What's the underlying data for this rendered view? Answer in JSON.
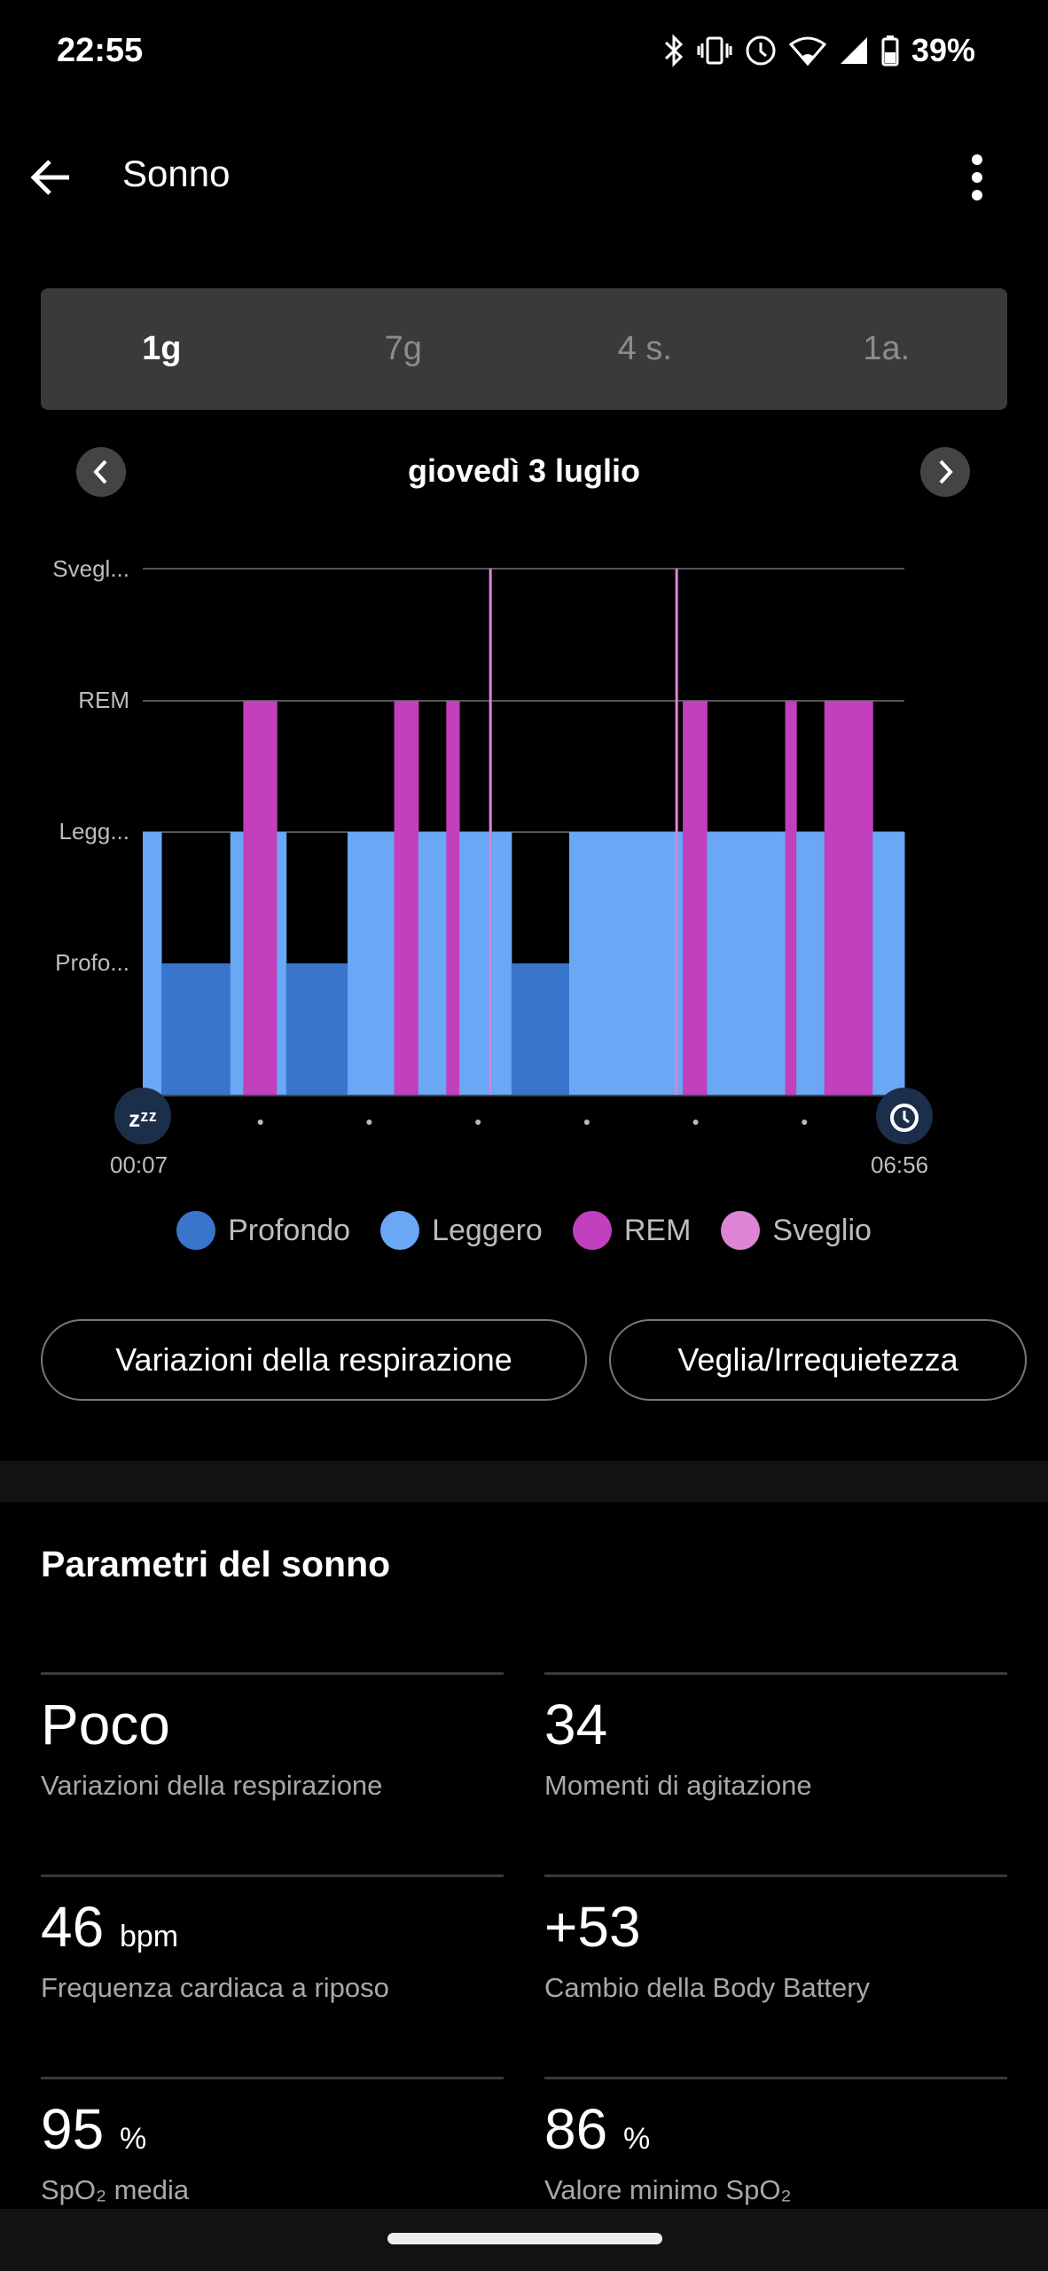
{
  "status": {
    "time": "22:55",
    "battery": "39%",
    "icons": [
      "bluetooth-icon",
      "vibrate-icon",
      "alarm-icon",
      "wifi-icon",
      "signal-icon",
      "battery-icon"
    ]
  },
  "header": {
    "title": "Sonno"
  },
  "tabs": [
    {
      "label": "1g",
      "active": true
    },
    {
      "label": "7g"
    },
    {
      "label": "4 s."
    },
    {
      "label": "1a."
    }
  ],
  "date": "giovedì 3 luglio",
  "chart_data": {
    "type": "hypnogram",
    "levels": [
      "Profo...",
      "Legg...",
      "REM",
      "Svegl..."
    ],
    "start": "00:07",
    "end": "06:56",
    "total_minutes": 409,
    "colors": {
      "deep": "#3a75cc",
      "light": "#6aa7f5",
      "rem": "#c23fbd",
      "awake": "#de84d6"
    },
    "segments": [
      {
        "stage": "light",
        "from": 0,
        "to": 10
      },
      {
        "stage": "deep",
        "from": 10,
        "to": 47
      },
      {
        "stage": "light",
        "from": 47,
        "to": 54
      },
      {
        "stage": "rem",
        "from": 54,
        "to": 72
      },
      {
        "stage": "light",
        "from": 72,
        "to": 77
      },
      {
        "stage": "deep",
        "from": 77,
        "to": 110
      },
      {
        "stage": "light",
        "from": 110,
        "to": 135
      },
      {
        "stage": "rem",
        "from": 135,
        "to": 148
      },
      {
        "stage": "light",
        "from": 148,
        "to": 163
      },
      {
        "stage": "rem",
        "from": 163,
        "to": 170
      },
      {
        "stage": "light",
        "from": 170,
        "to": 186
      },
      {
        "stage": "awake",
        "from": 186,
        "to": 187
      },
      {
        "stage": "light",
        "from": 187,
        "to": 198
      },
      {
        "stage": "deep",
        "from": 198,
        "to": 229
      },
      {
        "stage": "light",
        "from": 229,
        "to": 286
      },
      {
        "stage": "awake",
        "from": 286,
        "to": 287
      },
      {
        "stage": "light",
        "from": 287,
        "to": 290
      },
      {
        "stage": "rem",
        "from": 290,
        "to": 303
      },
      {
        "stage": "light",
        "from": 303,
        "to": 345
      },
      {
        "stage": "rem",
        "from": 345,
        "to": 351
      },
      {
        "stage": "light",
        "from": 351,
        "to": 366
      },
      {
        "stage": "rem",
        "from": 366,
        "to": 392
      },
      {
        "stage": "light",
        "from": 392,
        "to": 409
      }
    ],
    "legend": [
      {
        "label": "Profondo",
        "color": "#3a75cc"
      },
      {
        "label": "Leggero",
        "color": "#6aa7f5"
      },
      {
        "label": "REM",
        "color": "#c23fbd"
      },
      {
        "label": "Sveglio",
        "color": "#de84d6"
      }
    ]
  },
  "buttons": {
    "breathing": "Variazioni della respirazione",
    "awake": "Veglia/Irrequietezza"
  },
  "params": {
    "title": "Parametri del sonno",
    "items": [
      {
        "value": "Poco",
        "unit": "",
        "label": "Variazioni della respirazione"
      },
      {
        "value": "34",
        "unit": "",
        "label": "Momenti di agitazione"
      },
      {
        "value": "46",
        "unit": "bpm",
        "label": "Frequenza cardiaca a riposo"
      },
      {
        "value": "+53",
        "unit": "",
        "label": "Cambio della Body Battery"
      },
      {
        "value": "95",
        "unit": "%",
        "label": "SpO₂ media"
      },
      {
        "value": "86",
        "unit": "%",
        "label": "Valore minimo SpO₂"
      }
    ]
  }
}
